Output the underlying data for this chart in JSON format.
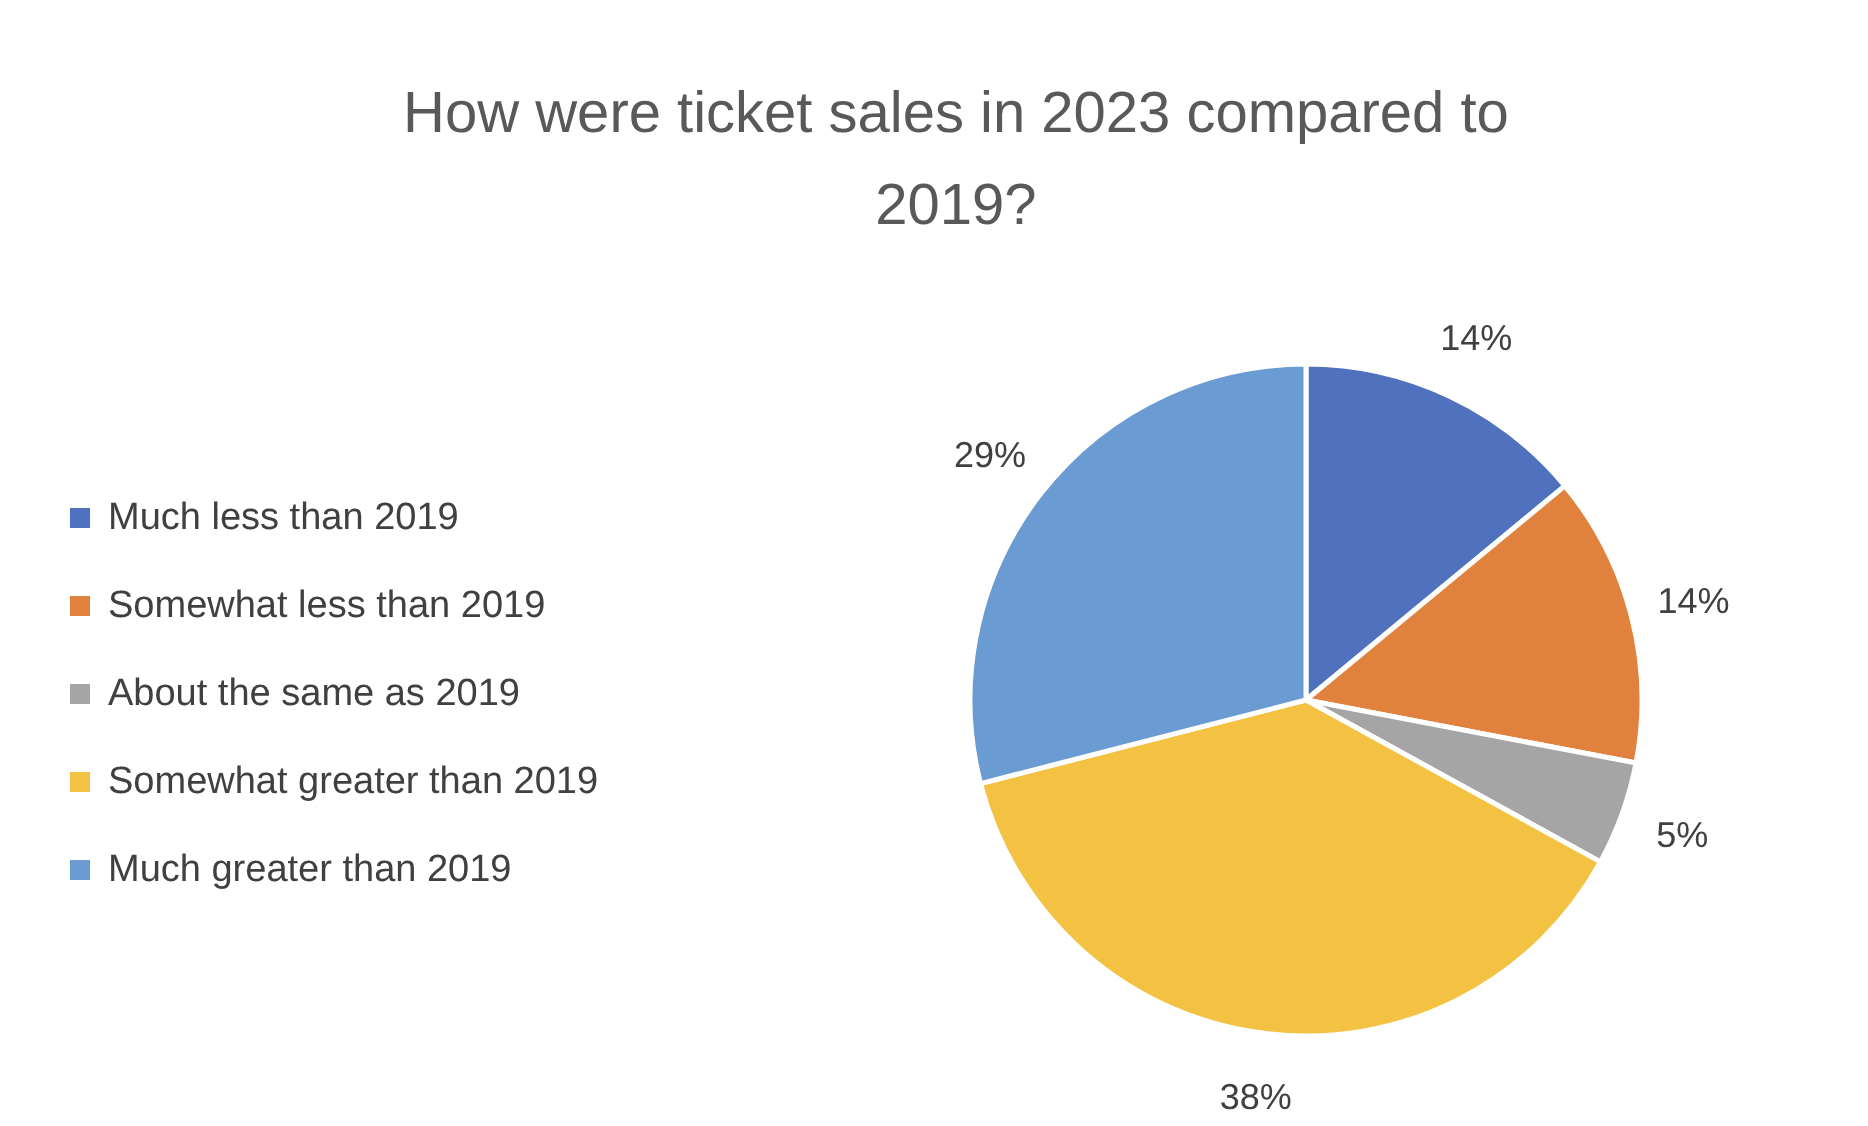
{
  "chart_data": {
    "type": "pie",
    "title": "How were ticket sales in 2023 compared to 2019?",
    "categories": [
      "Much less than 2019",
      "Somewhat less than 2019",
      "About the same as 2019",
      "Somewhat greater than 2019",
      "Much greater than 2019"
    ],
    "values": [
      14,
      14,
      5,
      38,
      29
    ],
    "colors": [
      "#4f71be",
      "#e0823d",
      "#a5a5a5",
      "#f4c242",
      "#6a9bd3"
    ],
    "value_labels": [
      "14%",
      "14%",
      "5%",
      "38%",
      "29%"
    ],
    "legend": "left"
  }
}
